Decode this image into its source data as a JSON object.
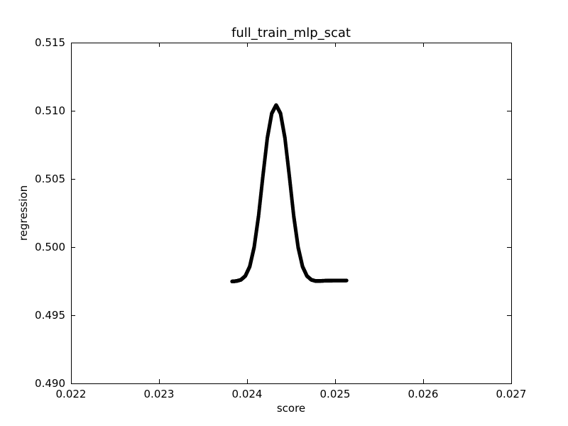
{
  "chart_data": {
    "type": "scatter",
    "title": "full_train_mlp_scat",
    "xlabel": "score",
    "ylabel": "regression",
    "xlim": [
      0.022,
      0.027
    ],
    "ylim": [
      0.49,
      0.515
    ],
    "x_ticks": [
      "0.022",
      "0.023",
      "0.024",
      "0.025",
      "0.026",
      "0.027"
    ],
    "y_ticks": [
      "0.490",
      "0.495",
      "0.500",
      "0.505",
      "0.510",
      "0.515"
    ],
    "grid": false,
    "series": [
      {
        "color": "#000000",
        "x": [
          0.02383,
          0.02388,
          0.02393,
          0.02398,
          0.02403,
          0.02408,
          0.02413,
          0.02418,
          0.02423,
          0.02428,
          0.02433,
          0.02438,
          0.02443,
          0.02448,
          0.02453,
          0.02458,
          0.02463,
          0.02468,
          0.02473,
          0.02478,
          0.02483,
          0.02488,
          0.02493,
          0.02498,
          0.02503,
          0.02508,
          0.02513
        ],
        "y": [
          0.49748,
          0.49751,
          0.4976,
          0.49788,
          0.49857,
          0.49998,
          0.50227,
          0.50522,
          0.508,
          0.5098,
          0.51042,
          0.5098,
          0.508,
          0.50522,
          0.50227,
          0.49998,
          0.49857,
          0.49788,
          0.4976,
          0.49751,
          0.49752,
          0.49753,
          0.49754,
          0.49755,
          0.49755,
          0.49755,
          0.49755
        ]
      }
    ]
  }
}
